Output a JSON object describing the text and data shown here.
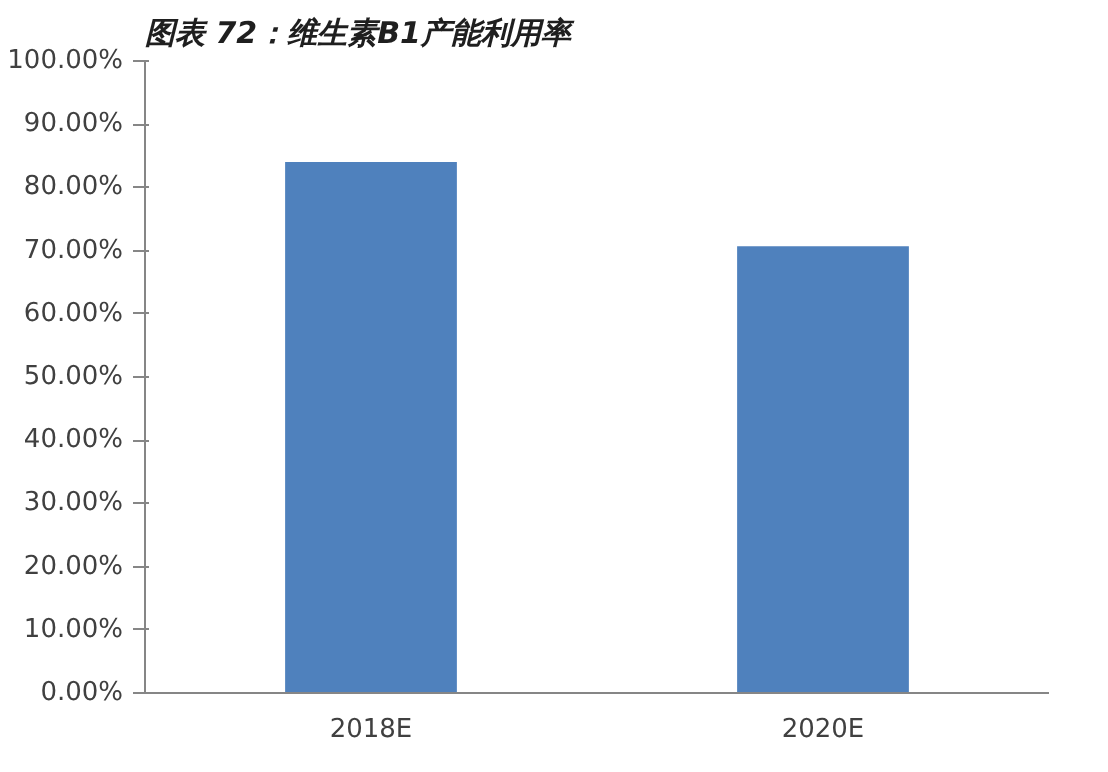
{
  "chart_data": {
    "type": "bar",
    "title": "图表 72：维生素B1产能利用率",
    "categories": [
      "2018E",
      "2020E"
    ],
    "values": [
      84,
      70.7
    ],
    "color": "#4f81bd",
    "ylim": [
      0,
      100
    ],
    "yticks": [
      {
        "value": 0,
        "label": "0.00%"
      },
      {
        "value": 10,
        "label": "10.00%"
      },
      {
        "value": 20,
        "label": "20.00%"
      },
      {
        "value": 30,
        "label": "30.00%"
      },
      {
        "value": 40,
        "label": "40.00%"
      },
      {
        "value": 50,
        "label": "50.00%"
      },
      {
        "value": 60,
        "label": "60.00%"
      },
      {
        "value": 70,
        "label": "70.00%"
      },
      {
        "value": 80,
        "label": "80.00%"
      },
      {
        "value": 90,
        "label": "90.00%"
      },
      {
        "value": 100,
        "label": "100.00%"
      }
    ],
    "grid": false
  }
}
